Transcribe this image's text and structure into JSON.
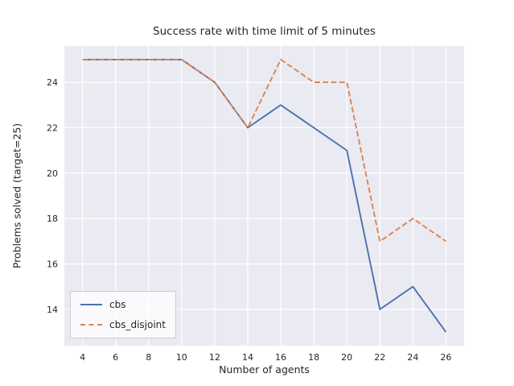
{
  "chart_data": {
    "type": "line",
    "title": "Success rate with time limit of 5 minutes",
    "xlabel": "Number of agents",
    "ylabel": "Problems solved (target=25)",
    "x": [
      4,
      6,
      8,
      10,
      12,
      14,
      16,
      18,
      20,
      22,
      24,
      26
    ],
    "series": [
      {
        "name": "cbs",
        "values": [
          25,
          25,
          25,
          25,
          24,
          22,
          23,
          22,
          21,
          14,
          15,
          13
        ],
        "color": "#4c72b0",
        "dash": "solid"
      },
      {
        "name": "cbs_disjoint",
        "values": [
          25,
          25,
          25,
          25,
          24,
          22,
          25,
          24,
          24,
          17,
          18,
          17
        ],
        "color": "#dd8452",
        "dash": "dashed"
      }
    ],
    "xticks": [
      4,
      6,
      8,
      10,
      12,
      14,
      16,
      18,
      20,
      22,
      24,
      26
    ],
    "yticks": [
      14,
      16,
      18,
      20,
      22,
      24
    ],
    "xlim": [
      2.9,
      27.1
    ],
    "ylim": [
      12.4,
      25.6
    ],
    "grid": true,
    "legend_position": "lower left",
    "axes_bg": "#eaeaf2",
    "grid_color": "#ffffff",
    "text_color": "#262626"
  }
}
